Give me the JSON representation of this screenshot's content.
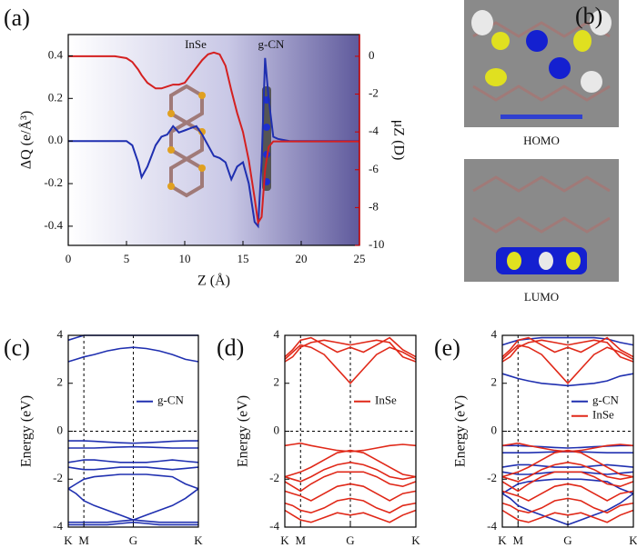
{
  "chart_data": [
    {
      "type": "line",
      "panel": "(a)",
      "xlabel": "Z (Å)",
      "ylabel": "ΔQ (e/Å³)",
      "y2label": "μZ (D)",
      "annotations": [
        "InSe",
        "g-CN"
      ],
      "x": [
        0,
        2,
        4,
        5,
        5.5,
        6,
        6.3,
        6.8,
        7.5,
        8,
        8.5,
        9,
        9.5,
        10,
        10.5,
        11,
        11.5,
        12,
        12.5,
        13,
        13.5,
        14,
        14.5,
        15,
        15.5,
        16,
        16.3,
        16.6,
        16.9,
        17.2,
        17.6,
        18,
        19,
        20,
        22,
        25
      ],
      "series": [
        {
          "name": "ΔQ",
          "color": "#1f2fb0",
          "values": [
            0,
            0,
            0,
            0,
            -0.02,
            -0.1,
            -0.17,
            -0.12,
            -0.02,
            0.02,
            0.03,
            0.07,
            0.04,
            0.05,
            0.06,
            0.07,
            0.03,
            -0.02,
            -0.07,
            -0.08,
            -0.1,
            -0.18,
            -0.12,
            -0.1,
            -0.2,
            -0.38,
            -0.4,
            -0.1,
            0.39,
            0.2,
            0.02,
            0.01,
            0,
            0,
            0,
            0
          ]
        },
        {
          "name": "μZ",
          "color": "#d42020",
          "axis": "y2",
          "values": [
            0,
            0,
            0,
            -0.1,
            -0.3,
            -0.7,
            -1,
            -1.4,
            -1.7,
            -1.7,
            -1.6,
            -1.5,
            -1.5,
            -1.4,
            -1,
            -0.6,
            -0.2,
            0.1,
            0.2,
            0.1,
            -0.5,
            -1.8,
            -3,
            -4,
            -5.5,
            -7.5,
            -8.8,
            -8.5,
            -6,
            -4.8,
            -4.5,
            -4.5,
            -4.5,
            -4.5,
            -4.5,
            -4.5
          ]
        }
      ],
      "xlim": [
        0,
        25
      ],
      "xticks": [
        0,
        5,
        10,
        15,
        20,
        25
      ],
      "ylim": [
        -0.49,
        0.5
      ],
      "yticks": [
        -0.4,
        -0.2,
        {
          "value": 0,
          "label": "0.0"
        },
        0.2,
        0.4
      ],
      "y2lim": [
        -10,
        1.15
      ],
      "y2ticks": [
        0,
        -2,
        -4,
        -6,
        -8,
        -10
      ],
      "grid": false
    },
    {
      "type": "line",
      "panel": "(c)",
      "ylabel": "Energy (eV)",
      "legend": "center right",
      "grid": true,
      "x": [
        0,
        0.06,
        0.12,
        0.2,
        0.3,
        0.4,
        0.5,
        0.6,
        0.7,
        0.8,
        0.9,
        1
      ],
      "xlim": [
        0,
        1
      ],
      "xticks": [
        {
          "value": 0,
          "label": "K"
        },
        {
          "value": 0.12,
          "label": "M"
        },
        {
          "value": 0.5,
          "label": "G"
        },
        {
          "value": 1,
          "label": "K"
        }
      ],
      "ylim": [
        -4,
        4
      ],
      "yticks": [
        -4,
        -2,
        0,
        2,
        4
      ],
      "series": [
        {
          "name": "g-CN",
          "color": "#2030b0",
          "bands": [
            [
              3.8,
              3.9,
              4,
              4,
              4,
              4,
              4,
              4,
              4,
              4,
              4,
              4
            ],
            [
              2.9,
              3.0,
              3.1,
              3.2,
              3.35,
              3.45,
              3.5,
              3.45,
              3.35,
              3.2,
              3.0,
              2.9
            ],
            [
              -0.4,
              -0.4,
              -0.4,
              -0.42,
              -0.45,
              -0.48,
              -0.5,
              -0.48,
              -0.45,
              -0.42,
              -0.4,
              -0.4
            ],
            [
              -0.7,
              -0.7,
              -0.7,
              -0.7,
              -0.68,
              -0.66,
              -0.65,
              -0.66,
              -0.68,
              -0.7,
              -0.7,
              -0.7
            ],
            [
              -1.3,
              -1.25,
              -1.2,
              -1.2,
              -1.25,
              -1.3,
              -1.3,
              -1.3,
              -1.25,
              -1.2,
              -1.25,
              -1.3
            ],
            [
              -1.5,
              -1.55,
              -1.6,
              -1.6,
              -1.55,
              -1.5,
              -1.5,
              -1.5,
              -1.55,
              -1.6,
              -1.55,
              -1.5
            ],
            [
              -2.4,
              -2.2,
              -2.0,
              -1.9,
              -1.85,
              -1.8,
              -1.8,
              -1.8,
              -1.85,
              -1.9,
              -2.2,
              -2.4
            ],
            [
              -2.4,
              -2.6,
              -2.9,
              -3.1,
              -3.3,
              -3.5,
              -3.7,
              -3.5,
              -3.3,
              -3.1,
              -2.8,
              -2.4
            ],
            [
              -3.8,
              -3.8,
              -3.8,
              -3.8,
              -3.8,
              -3.75,
              -3.7,
              -3.75,
              -3.8,
              -3.8,
              -3.8,
              -3.8
            ],
            [
              -3.9,
              -3.9,
              -3.9,
              -3.9,
              -3.9,
              -3.85,
              -3.8,
              -3.85,
              -3.9,
              -3.9,
              -3.9,
              -3.9
            ]
          ]
        }
      ]
    },
    {
      "type": "line",
      "panel": "(d)",
      "ylabel": "Energy (eV)",
      "legend": "center right",
      "grid": true,
      "x": [
        0,
        0.06,
        0.12,
        0.2,
        0.3,
        0.4,
        0.5,
        0.6,
        0.7,
        0.8,
        0.9,
        1
      ],
      "xlim": [
        0,
        1
      ],
      "xticks": [
        {
          "value": 0,
          "label": "K"
        },
        {
          "value": 0.12,
          "label": "M"
        },
        {
          "value": 0.5,
          "label": "G"
        },
        {
          "value": 1,
          "label": "K"
        }
      ],
      "ylim": [
        -4,
        4
      ],
      "yticks": [
        -4,
        -2,
        0,
        2,
        4
      ],
      "series": [
        {
          "name": "InSe",
          "color": "#e02818",
          "bands": [
            [
              3.0,
              3.3,
              3.6,
              3.5,
              3.2,
              2.6,
              2.0,
              2.6,
              3.2,
              3.5,
              3.3,
              3.0
            ],
            [
              2.9,
              3.1,
              3.5,
              3.7,
              3.8,
              3.7,
              3.6,
              3.7,
              3.8,
              3.7,
              3.1,
              2.9
            ],
            [
              3.1,
              3.4,
              3.8,
              3.9,
              3.6,
              3.3,
              3.5,
              3.3,
              3.6,
              3.9,
              3.4,
              3.1
            ],
            [
              -0.6,
              -0.55,
              -0.5,
              -0.6,
              -0.7,
              -0.8,
              -0.85,
              -0.8,
              -0.7,
              -0.6,
              -0.55,
              -0.6
            ],
            [
              -1.9,
              -1.8,
              -1.7,
              -1.5,
              -1.2,
              -0.9,
              -0.8,
              -0.9,
              -1.2,
              -1.5,
              -1.8,
              -1.9
            ],
            [
              -1.9,
              -2.0,
              -2.1,
              -1.9,
              -1.6,
              -1.4,
              -1.3,
              -1.4,
              -1.6,
              -1.9,
              -2.0,
              -1.9
            ],
            [
              -2.1,
              -2.3,
              -2.5,
              -2.2,
              -1.9,
              -1.7,
              -1.7,
              -1.7,
              -1.9,
              -2.2,
              -2.3,
              -2.1
            ],
            [
              -2.5,
              -2.6,
              -2.7,
              -2.9,
              -2.6,
              -2.3,
              -2.2,
              -2.3,
              -2.6,
              -2.9,
              -2.6,
              -2.5
            ],
            [
              -3.0,
              -3.1,
              -3.3,
              -3.4,
              -3.2,
              -2.9,
              -2.8,
              -2.9,
              -3.2,
              -3.4,
              -3.1,
              -3.0
            ],
            [
              -3.3,
              -3.5,
              -3.7,
              -3.8,
              -3.6,
              -3.4,
              -3.5,
              -3.4,
              -3.6,
              -3.8,
              -3.5,
              -3.3
            ]
          ]
        }
      ]
    },
    {
      "type": "line",
      "panel": "(e)",
      "ylabel": "Energy (eV)",
      "legend": "center right",
      "grid": true,
      "x": [
        0,
        0.06,
        0.12,
        0.2,
        0.3,
        0.4,
        0.5,
        0.6,
        0.7,
        0.8,
        0.9,
        1
      ],
      "xlim": [
        0,
        1
      ],
      "xticks": [
        {
          "value": 0,
          "label": "K"
        },
        {
          "value": 0.12,
          "label": "M"
        },
        {
          "value": 0.5,
          "label": "G"
        },
        {
          "value": 1,
          "label": "K"
        }
      ],
      "ylim": [
        -4,
        4
      ],
      "yticks": [
        -4,
        -2,
        0,
        2,
        4
      ],
      "series": [
        {
          "name": "g-CN",
          "color": "#2030b0",
          "bands": [
            [
              3.6,
              3.7,
              3.8,
              3.85,
              3.9,
              3.9,
              3.9,
              3.9,
              3.9,
              3.85,
              3.7,
              3.6
            ],
            [
              2.4,
              2.3,
              2.2,
              2.1,
              2.0,
              1.95,
              1.9,
              1.95,
              2.0,
              2.1,
              2.3,
              2.4
            ],
            [
              -0.6,
              -0.6,
              -0.6,
              -0.62,
              -0.65,
              -0.68,
              -0.7,
              -0.68,
              -0.65,
              -0.62,
              -0.6,
              -0.6
            ],
            [
              -0.9,
              -0.9,
              -0.9,
              -0.9,
              -0.88,
              -0.86,
              -0.85,
              -0.86,
              -0.88,
              -0.9,
              -0.9,
              -0.9
            ],
            [
              -1.5,
              -1.45,
              -1.4,
              -1.4,
              -1.45,
              -1.5,
              -1.5,
              -1.5,
              -1.45,
              -1.4,
              -1.45,
              -1.5
            ],
            [
              -1.7,
              -1.75,
              -1.8,
              -1.8,
              -1.75,
              -1.7,
              -1.7,
              -1.7,
              -1.75,
              -1.8,
              -1.75,
              -1.7
            ],
            [
              -2.6,
              -2.4,
              -2.2,
              -2.1,
              -2.05,
              -2.0,
              -2.0,
              -2.0,
              -2.05,
              -2.1,
              -2.4,
              -2.6
            ],
            [
              -2.6,
              -2.8,
              -3.1,
              -3.3,
              -3.5,
              -3.7,
              -3.9,
              -3.7,
              -3.5,
              -3.3,
              -3.0,
              -2.6
            ]
          ]
        },
        {
          "name": "InSe",
          "color": "#e02818",
          "bands": [
            [
              3.0,
              3.3,
              3.6,
              3.5,
              3.2,
              2.6,
              2.0,
              2.6,
              3.2,
              3.5,
              3.3,
              3.0
            ],
            [
              2.9,
              3.1,
              3.5,
              3.7,
              3.8,
              3.7,
              3.6,
              3.7,
              3.8,
              3.7,
              3.1,
              2.9
            ],
            [
              3.1,
              3.4,
              3.8,
              3.9,
              3.6,
              3.3,
              3.5,
              3.3,
              3.6,
              3.9,
              3.4,
              3.1
            ],
            [
              -0.6,
              -0.55,
              -0.5,
              -0.6,
              -0.7,
              -0.8,
              -0.85,
              -0.8,
              -0.7,
              -0.6,
              -0.55,
              -0.6
            ],
            [
              -1.9,
              -1.8,
              -1.7,
              -1.5,
              -1.2,
              -0.9,
              -0.8,
              -0.9,
              -1.2,
              -1.5,
              -1.8,
              -1.9
            ],
            [
              -1.9,
              -2.0,
              -2.1,
              -1.9,
              -1.6,
              -1.4,
              -1.3,
              -1.4,
              -1.6,
              -1.9,
              -2.0,
              -1.9
            ],
            [
              -2.1,
              -2.3,
              -2.5,
              -2.2,
              -1.9,
              -1.7,
              -1.7,
              -1.7,
              -1.9,
              -2.2,
              -2.3,
              -2.1
            ],
            [
              -2.5,
              -2.6,
              -2.7,
              -2.9,
              -2.6,
              -2.3,
              -2.2,
              -2.3,
              -2.6,
              -2.9,
              -2.6,
              -2.5
            ],
            [
              -3.0,
              -3.1,
              -3.3,
              -3.4,
              -3.2,
              -2.9,
              -2.8,
              -2.9,
              -3.2,
              -3.4,
              -3.1,
              -3.0
            ],
            [
              -3.3,
              -3.5,
              -3.7,
              -3.8,
              -3.6,
              -3.4,
              -3.5,
              -3.4,
              -3.6,
              -3.8,
              -3.5,
              -3.3
            ]
          ]
        }
      ]
    }
  ],
  "panel_b": {
    "panel": "(b)",
    "labels": [
      "HOMO",
      "LUMO"
    ]
  }
}
